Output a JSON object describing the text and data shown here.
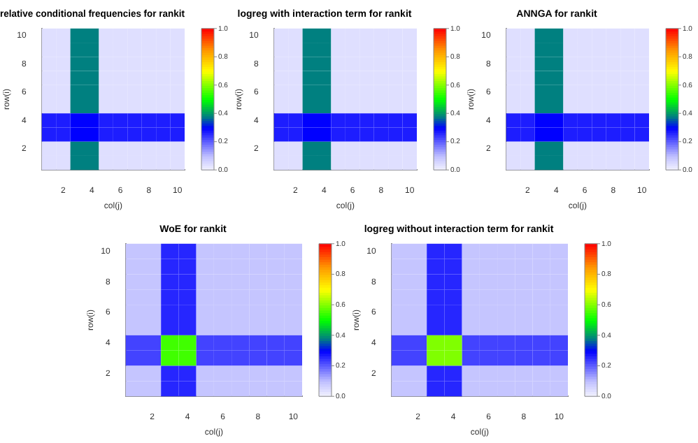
{
  "chart_data": [
    {
      "type": "heatmap",
      "title": "relative conditional frequencies for rankit",
      "xlabel": "col(j)",
      "ylabel": "row(i)",
      "categories": [
        null,
        "2",
        null,
        "4",
        null,
        "6",
        null,
        "8",
        null,
        "10"
      ],
      "y_categories": [
        "10",
        null,
        "8",
        null,
        "6",
        null,
        "4",
        null,
        "2",
        null
      ],
      "cells": [
        [
          0.04,
          0.04,
          0.38,
          0.38,
          0.04,
          0.04,
          0.04,
          0.04,
          0.04,
          0.04
        ],
        [
          0.04,
          0.04,
          0.38,
          0.38,
          0.04,
          0.04,
          0.04,
          0.04,
          0.04,
          0.04
        ],
        [
          0.04,
          0.04,
          0.38,
          0.38,
          0.04,
          0.04,
          0.04,
          0.04,
          0.04,
          0.04
        ],
        [
          0.04,
          0.04,
          0.38,
          0.38,
          0.04,
          0.04,
          0.04,
          0.04,
          0.04,
          0.04
        ],
        [
          0.04,
          0.04,
          0.38,
          0.38,
          0.04,
          0.04,
          0.04,
          0.04,
          0.04,
          0.04
        ],
        [
          0.04,
          0.04,
          0.38,
          0.38,
          0.04,
          0.04,
          0.04,
          0.04,
          0.04,
          0.04
        ],
        [
          0.27,
          0.27,
          0.3,
          0.3,
          0.27,
          0.27,
          0.27,
          0.27,
          0.27,
          0.27
        ],
        [
          0.27,
          0.27,
          0.3,
          0.3,
          0.27,
          0.27,
          0.27,
          0.27,
          0.27,
          0.27
        ],
        [
          0.04,
          0.04,
          0.38,
          0.38,
          0.04,
          0.04,
          0.04,
          0.04,
          0.04,
          0.04
        ],
        [
          0.04,
          0.04,
          0.38,
          0.38,
          0.04,
          0.04,
          0.04,
          0.04,
          0.04,
          0.04
        ]
      ],
      "clim": [
        0,
        1
      ],
      "cticks": [
        {
          "value": 0,
          "label": "0.0"
        },
        {
          "value": 0.2,
          "label": "0.2"
        },
        {
          "value": 0.4,
          "label": "0.4"
        },
        {
          "value": 0.6,
          "label": "0.6"
        },
        {
          "value": 0.8,
          "label": "0.8"
        },
        {
          "value": 1,
          "label": "1.0"
        }
      ]
    },
    {
      "type": "heatmap",
      "title": "logreg with interaction term for rankit",
      "xlabel": "col(j)",
      "ylabel": "row(i)",
      "categories": [
        null,
        "2",
        null,
        "4",
        null,
        "6",
        null,
        "8",
        null,
        "10"
      ],
      "y_categories": [
        "10",
        null,
        "8",
        null,
        "6",
        null,
        "4",
        null,
        "2",
        null
      ],
      "cells": [
        [
          0.04,
          0.04,
          0.38,
          0.38,
          0.04,
          0.04,
          0.04,
          0.04,
          0.04,
          0.04
        ],
        [
          0.04,
          0.04,
          0.38,
          0.38,
          0.04,
          0.04,
          0.04,
          0.04,
          0.04,
          0.04
        ],
        [
          0.04,
          0.04,
          0.38,
          0.38,
          0.04,
          0.04,
          0.04,
          0.04,
          0.04,
          0.04
        ],
        [
          0.04,
          0.04,
          0.38,
          0.38,
          0.04,
          0.04,
          0.04,
          0.04,
          0.04,
          0.04
        ],
        [
          0.04,
          0.04,
          0.38,
          0.38,
          0.04,
          0.04,
          0.04,
          0.04,
          0.04,
          0.04
        ],
        [
          0.04,
          0.04,
          0.38,
          0.38,
          0.04,
          0.04,
          0.04,
          0.04,
          0.04,
          0.04
        ],
        [
          0.27,
          0.27,
          0.3,
          0.3,
          0.27,
          0.27,
          0.27,
          0.27,
          0.27,
          0.27
        ],
        [
          0.27,
          0.27,
          0.3,
          0.3,
          0.27,
          0.27,
          0.27,
          0.27,
          0.27,
          0.27
        ],
        [
          0.04,
          0.04,
          0.38,
          0.38,
          0.04,
          0.04,
          0.04,
          0.04,
          0.04,
          0.04
        ],
        [
          0.04,
          0.04,
          0.38,
          0.38,
          0.04,
          0.04,
          0.04,
          0.04,
          0.04,
          0.04
        ]
      ],
      "clim": [
        0,
        1
      ],
      "cticks": [
        {
          "value": 0,
          "label": "0.0"
        },
        {
          "value": 0.2,
          "label": "0.2"
        },
        {
          "value": 0.4,
          "label": "0.4"
        },
        {
          "value": 0.6,
          "label": "0.6"
        },
        {
          "value": 0.8,
          "label": "0.8"
        },
        {
          "value": 1,
          "label": "1.0"
        }
      ]
    },
    {
      "type": "heatmap",
      "title": "ANNGA for rankit",
      "xlabel": "col(j)",
      "ylabel": "row(i)",
      "categories": [
        null,
        "2",
        null,
        "4",
        null,
        "6",
        null,
        "8",
        null,
        "10"
      ],
      "y_categories": [
        "10",
        null,
        "8",
        null,
        "6",
        null,
        "4",
        null,
        "2",
        null
      ],
      "cells": [
        [
          0.04,
          0.04,
          0.38,
          0.38,
          0.04,
          0.04,
          0.04,
          0.04,
          0.04,
          0.04
        ],
        [
          0.04,
          0.04,
          0.38,
          0.38,
          0.04,
          0.04,
          0.04,
          0.04,
          0.04,
          0.04
        ],
        [
          0.04,
          0.04,
          0.38,
          0.38,
          0.04,
          0.04,
          0.04,
          0.04,
          0.04,
          0.04
        ],
        [
          0.04,
          0.04,
          0.38,
          0.38,
          0.04,
          0.04,
          0.04,
          0.04,
          0.04,
          0.04
        ],
        [
          0.04,
          0.04,
          0.38,
          0.38,
          0.04,
          0.04,
          0.04,
          0.04,
          0.04,
          0.04
        ],
        [
          0.04,
          0.04,
          0.38,
          0.38,
          0.04,
          0.04,
          0.04,
          0.04,
          0.04,
          0.04
        ],
        [
          0.27,
          0.27,
          0.3,
          0.3,
          0.27,
          0.27,
          0.27,
          0.27,
          0.27,
          0.27
        ],
        [
          0.27,
          0.27,
          0.3,
          0.3,
          0.27,
          0.27,
          0.27,
          0.27,
          0.27,
          0.27
        ],
        [
          0.04,
          0.04,
          0.38,
          0.38,
          0.04,
          0.04,
          0.04,
          0.04,
          0.04,
          0.04
        ],
        [
          0.04,
          0.04,
          0.38,
          0.38,
          0.04,
          0.04,
          0.04,
          0.04,
          0.04,
          0.04
        ]
      ],
      "clim": [
        0,
        1
      ],
      "cticks": [
        {
          "value": 0,
          "label": "0.0"
        },
        {
          "value": 0.2,
          "label": "0.2"
        },
        {
          "value": 0.4,
          "label": "0.4"
        },
        {
          "value": 0.6,
          "label": "0.6"
        },
        {
          "value": 0.8,
          "label": "0.8"
        },
        {
          "value": 1,
          "label": "1.0"
        }
      ]
    },
    {
      "type": "heatmap",
      "title": "WoE for rankit",
      "xlabel": "col(j)",
      "ylabel": "row(i)",
      "categories": [
        null,
        "2",
        null,
        "4",
        null,
        "6",
        null,
        "8",
        null,
        "10"
      ],
      "y_categories": [
        "10",
        null,
        "8",
        null,
        "6",
        null,
        "4",
        null,
        "2",
        null
      ],
      "cells": [
        [
          0.09,
          0.09,
          0.26,
          0.26,
          0.09,
          0.09,
          0.09,
          0.09,
          0.09,
          0.09
        ],
        [
          0.09,
          0.09,
          0.26,
          0.26,
          0.09,
          0.09,
          0.09,
          0.09,
          0.09,
          0.09
        ],
        [
          0.09,
          0.09,
          0.26,
          0.26,
          0.09,
          0.09,
          0.09,
          0.09,
          0.09,
          0.09
        ],
        [
          0.09,
          0.09,
          0.26,
          0.26,
          0.09,
          0.09,
          0.09,
          0.09,
          0.09,
          0.09
        ],
        [
          0.09,
          0.09,
          0.26,
          0.26,
          0.09,
          0.09,
          0.09,
          0.09,
          0.09,
          0.09
        ],
        [
          0.09,
          0.09,
          0.26,
          0.26,
          0.09,
          0.09,
          0.09,
          0.09,
          0.09,
          0.09
        ],
        [
          0.23,
          0.23,
          0.55,
          0.55,
          0.23,
          0.23,
          0.23,
          0.23,
          0.23,
          0.23
        ],
        [
          0.23,
          0.23,
          0.55,
          0.55,
          0.23,
          0.23,
          0.23,
          0.23,
          0.23,
          0.23
        ],
        [
          0.09,
          0.09,
          0.26,
          0.26,
          0.09,
          0.09,
          0.09,
          0.09,
          0.09,
          0.09
        ],
        [
          0.09,
          0.09,
          0.26,
          0.26,
          0.09,
          0.09,
          0.09,
          0.09,
          0.09,
          0.09
        ]
      ],
      "clim": [
        0,
        1
      ],
      "cticks": [
        {
          "value": 0,
          "label": "0.0"
        },
        {
          "value": 0.2,
          "label": "0.2"
        },
        {
          "value": 0.4,
          "label": "0.4"
        },
        {
          "value": 0.6,
          "label": "0.6"
        },
        {
          "value": 0.8,
          "label": "0.8"
        },
        {
          "value": 1,
          "label": "1.0"
        }
      ]
    },
    {
      "type": "heatmap",
      "title": "logreg without interaction term for rankit",
      "xlabel": "col(j)",
      "ylabel": "row(i)",
      "categories": [
        null,
        "2",
        null,
        "4",
        null,
        "6",
        null,
        "8",
        null,
        "10"
      ],
      "y_categories": [
        "10",
        null,
        "8",
        null,
        "6",
        null,
        "4",
        null,
        "2",
        null
      ],
      "cells": [
        [
          0.09,
          0.09,
          0.26,
          0.26,
          0.09,
          0.09,
          0.09,
          0.09,
          0.09,
          0.09
        ],
        [
          0.09,
          0.09,
          0.26,
          0.26,
          0.09,
          0.09,
          0.09,
          0.09,
          0.09,
          0.09
        ],
        [
          0.09,
          0.09,
          0.26,
          0.26,
          0.09,
          0.09,
          0.09,
          0.09,
          0.09,
          0.09
        ],
        [
          0.09,
          0.09,
          0.26,
          0.26,
          0.09,
          0.09,
          0.09,
          0.09,
          0.09,
          0.09
        ],
        [
          0.09,
          0.09,
          0.26,
          0.26,
          0.09,
          0.09,
          0.09,
          0.09,
          0.09,
          0.09
        ],
        [
          0.09,
          0.09,
          0.26,
          0.26,
          0.09,
          0.09,
          0.09,
          0.09,
          0.09,
          0.09
        ],
        [
          0.23,
          0.23,
          0.6,
          0.6,
          0.23,
          0.23,
          0.23,
          0.23,
          0.23,
          0.23
        ],
        [
          0.23,
          0.23,
          0.6,
          0.6,
          0.23,
          0.23,
          0.23,
          0.23,
          0.23,
          0.23
        ],
        [
          0.09,
          0.09,
          0.26,
          0.26,
          0.09,
          0.09,
          0.09,
          0.09,
          0.09,
          0.09
        ],
        [
          0.09,
          0.09,
          0.26,
          0.26,
          0.09,
          0.09,
          0.09,
          0.09,
          0.09,
          0.09
        ]
      ],
      "clim": [
        0,
        1
      ],
      "cticks": [
        {
          "value": 0,
          "label": "0.0"
        },
        {
          "value": 0.2,
          "label": "0.2"
        },
        {
          "value": 0.4,
          "label": "0.4"
        },
        {
          "value": 0.6,
          "label": "0.6"
        },
        {
          "value": 0.8,
          "label": "0.8"
        },
        {
          "value": 1,
          "label": "1.0"
        }
      ]
    }
  ]
}
